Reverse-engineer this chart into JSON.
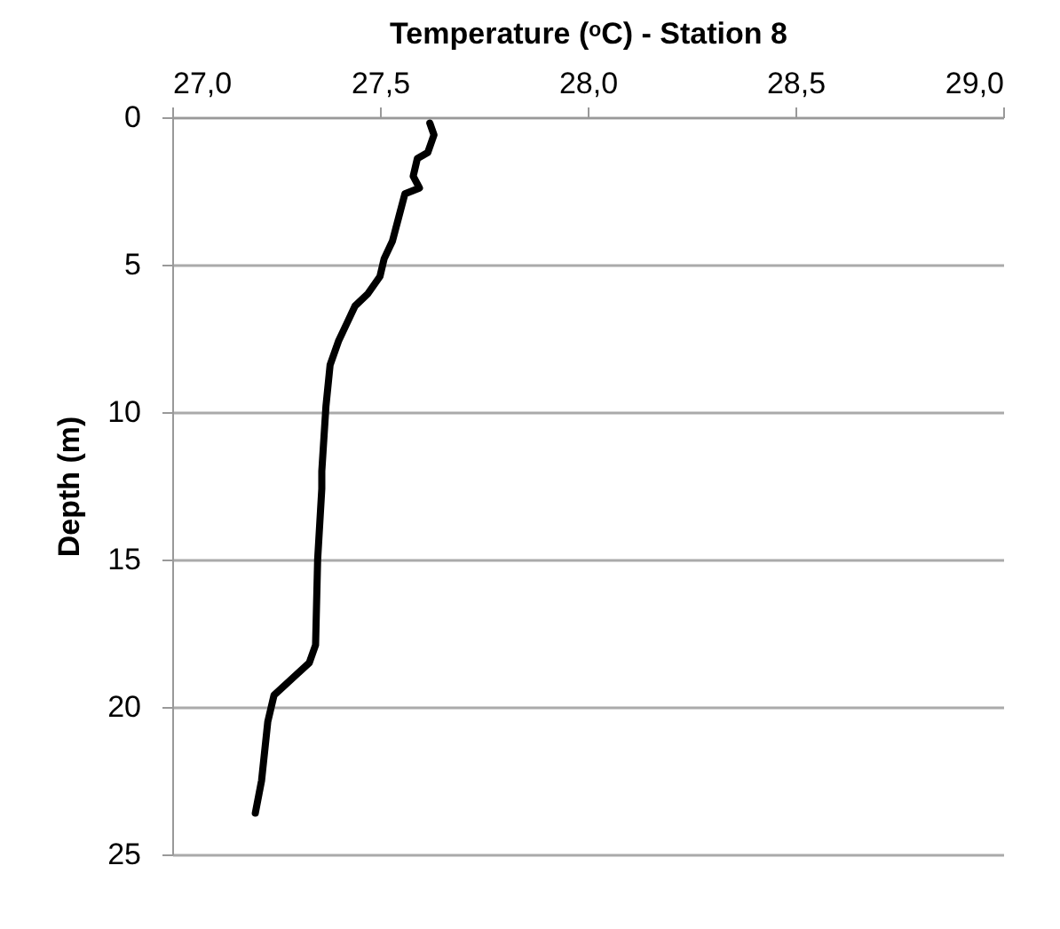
{
  "chart_data": {
    "type": "line",
    "xlabel": "Temperature (ᵒC) - Station 8",
    "ylabel": "Depth (m)",
    "x": [
      27.62,
      27.63,
      27.615,
      27.59,
      27.58,
      27.595,
      27.56,
      27.545,
      27.53,
      27.51,
      27.5,
      27.47,
      27.44,
      27.42,
      27.4,
      27.38,
      27.37,
      27.36,
      27.36,
      27.35,
      27.345,
      27.33,
      27.245,
      27.23,
      27.215,
      27.2
    ],
    "series": [
      {
        "color": "#000000",
        "values": [
          0.2,
          0.6,
          1.2,
          1.4,
          2.0,
          2.4,
          2.6,
          3.4,
          4.2,
          4.8,
          5.4,
          6.0,
          6.4,
          7.0,
          7.6,
          8.4,
          9.8,
          12.0,
          12.6,
          15.0,
          17.9,
          18.5,
          19.6,
          20.5,
          22.5,
          23.6
        ]
      }
    ],
    "xlim": [
      27,
      29
    ],
    "xticks": [
      {
        "value": 27,
        "label": "27,0"
      },
      {
        "value": 27.5,
        "label": "27,5"
      },
      {
        "value": 28,
        "label": "28,0"
      },
      {
        "value": 28.5,
        "label": "28,5"
      },
      {
        "value": 29,
        "label": "29,0"
      }
    ],
    "ylim": [
      25,
      0
    ],
    "yticks": [
      0,
      5,
      10,
      15,
      20,
      25
    ],
    "grid": "y",
    "legend": false,
    "marker": "none",
    "line_style": "solid"
  }
}
